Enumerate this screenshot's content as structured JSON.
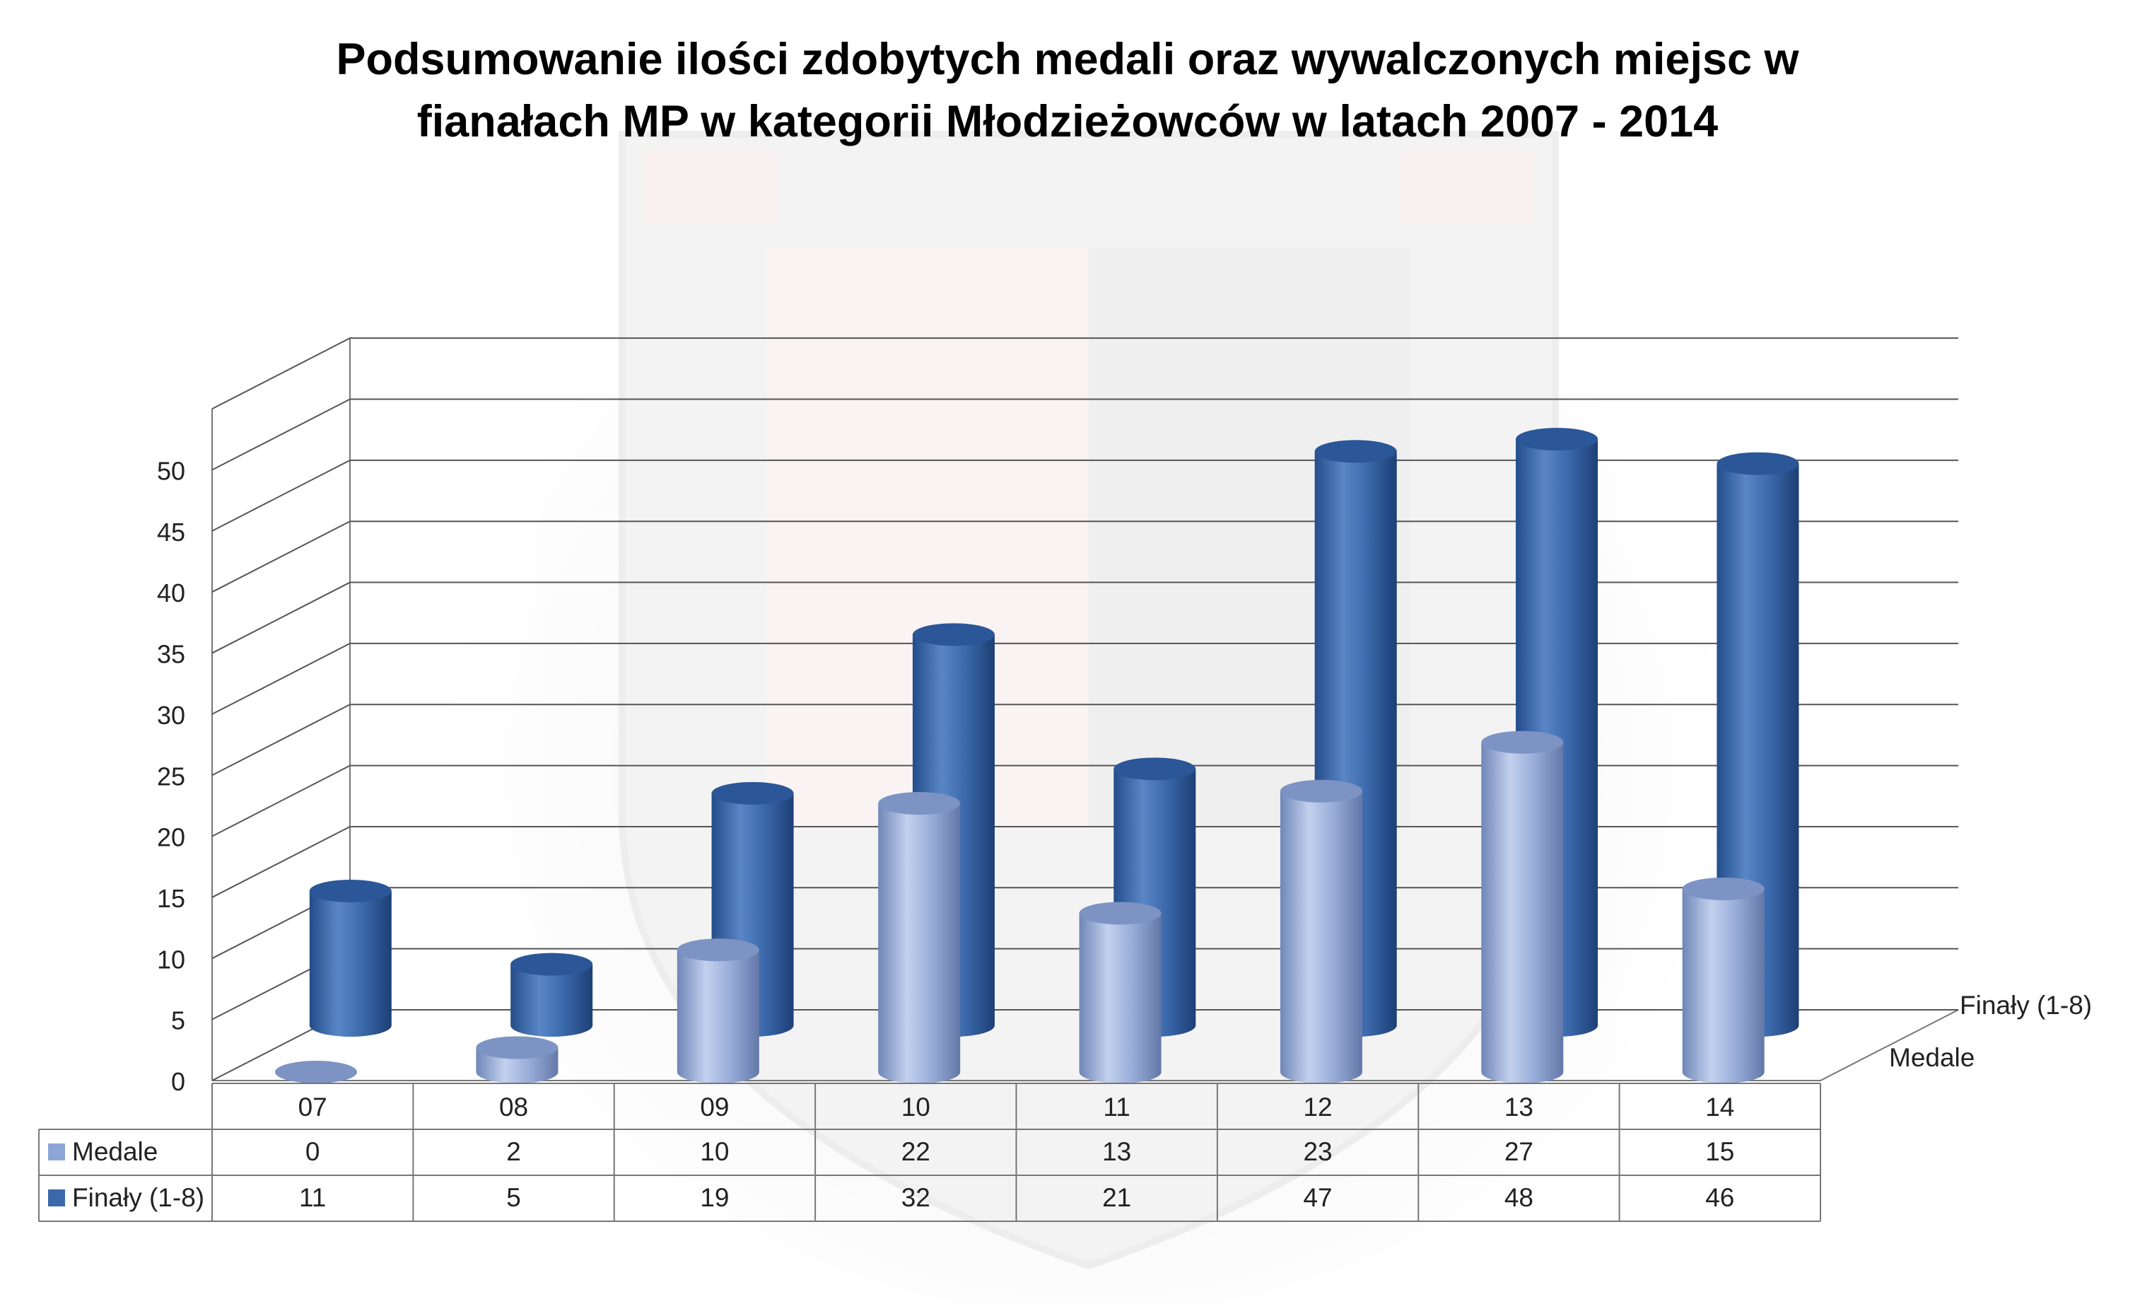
{
  "chart_data": {
    "type": "bar",
    "style": "3d-cylinder",
    "title_lines": [
      "Podsumowanie ilości zdobytych medali oraz wywalczonych miejsc w",
      "fianałach MP w kategorii Młodzieżowców w latach 2007 - 2014"
    ],
    "categories": [
      "07",
      "08",
      "09",
      "10",
      "11",
      "12",
      "13",
      "14"
    ],
    "series": [
      {
        "name": "Medale",
        "values": [
          0,
          2,
          10,
          22,
          13,
          23,
          27,
          15
        ],
        "color": "#8EA6D6"
      },
      {
        "name": "Finały (1-8)",
        "values": [
          11,
          5,
          19,
          32,
          21,
          47,
          48,
          46
        ],
        "color": "#3A68AA"
      }
    ],
    "ylim": [
      0,
      50
    ],
    "yticks": [
      0,
      5,
      10,
      15,
      20,
      25,
      30,
      35,
      40,
      45,
      50
    ],
    "grid": true,
    "legend": "data-table-below",
    "watermark": "WKS crest"
  }
}
